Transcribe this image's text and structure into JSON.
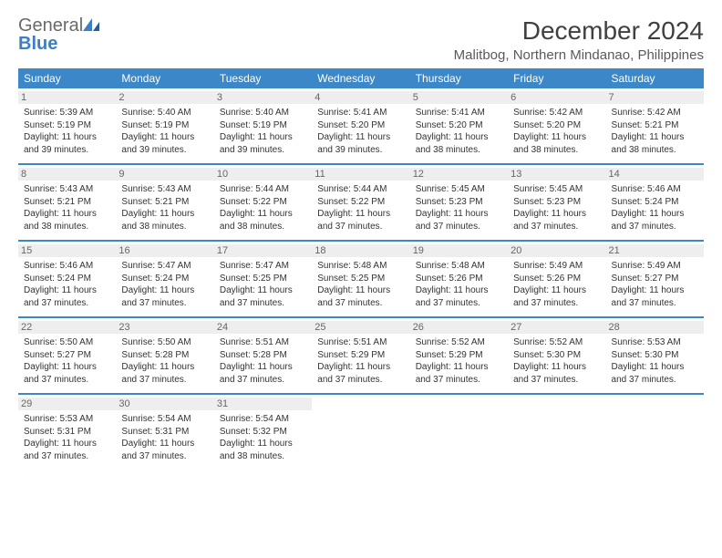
{
  "logo": {
    "text1": "General",
    "text2": "Blue"
  },
  "title": "December 2024",
  "location": "Malitbog, Northern Mindanao, Philippines",
  "colors": {
    "header_bg": "#3b87c8",
    "header_text": "#ffffff",
    "daynum_bg": "#eeeeee",
    "daynum_text": "#666666",
    "body_text": "#333333",
    "border": "#3b87c8"
  },
  "dayHeaders": [
    "Sunday",
    "Monday",
    "Tuesday",
    "Wednesday",
    "Thursday",
    "Friday",
    "Saturday"
  ],
  "weeks": [
    [
      {
        "n": "1",
        "sr": "Sunrise: 5:39 AM",
        "ss": "Sunset: 5:19 PM",
        "d1": "Daylight: 11 hours",
        "d2": "and 39 minutes."
      },
      {
        "n": "2",
        "sr": "Sunrise: 5:40 AM",
        "ss": "Sunset: 5:19 PM",
        "d1": "Daylight: 11 hours",
        "d2": "and 39 minutes."
      },
      {
        "n": "3",
        "sr": "Sunrise: 5:40 AM",
        "ss": "Sunset: 5:19 PM",
        "d1": "Daylight: 11 hours",
        "d2": "and 39 minutes."
      },
      {
        "n": "4",
        "sr": "Sunrise: 5:41 AM",
        "ss": "Sunset: 5:20 PM",
        "d1": "Daylight: 11 hours",
        "d2": "and 39 minutes."
      },
      {
        "n": "5",
        "sr": "Sunrise: 5:41 AM",
        "ss": "Sunset: 5:20 PM",
        "d1": "Daylight: 11 hours",
        "d2": "and 38 minutes."
      },
      {
        "n": "6",
        "sr": "Sunrise: 5:42 AM",
        "ss": "Sunset: 5:20 PM",
        "d1": "Daylight: 11 hours",
        "d2": "and 38 minutes."
      },
      {
        "n": "7",
        "sr": "Sunrise: 5:42 AM",
        "ss": "Sunset: 5:21 PM",
        "d1": "Daylight: 11 hours",
        "d2": "and 38 minutes."
      }
    ],
    [
      {
        "n": "8",
        "sr": "Sunrise: 5:43 AM",
        "ss": "Sunset: 5:21 PM",
        "d1": "Daylight: 11 hours",
        "d2": "and 38 minutes."
      },
      {
        "n": "9",
        "sr": "Sunrise: 5:43 AM",
        "ss": "Sunset: 5:21 PM",
        "d1": "Daylight: 11 hours",
        "d2": "and 38 minutes."
      },
      {
        "n": "10",
        "sr": "Sunrise: 5:44 AM",
        "ss": "Sunset: 5:22 PM",
        "d1": "Daylight: 11 hours",
        "d2": "and 38 minutes."
      },
      {
        "n": "11",
        "sr": "Sunrise: 5:44 AM",
        "ss": "Sunset: 5:22 PM",
        "d1": "Daylight: 11 hours",
        "d2": "and 37 minutes."
      },
      {
        "n": "12",
        "sr": "Sunrise: 5:45 AM",
        "ss": "Sunset: 5:23 PM",
        "d1": "Daylight: 11 hours",
        "d2": "and 37 minutes."
      },
      {
        "n": "13",
        "sr": "Sunrise: 5:45 AM",
        "ss": "Sunset: 5:23 PM",
        "d1": "Daylight: 11 hours",
        "d2": "and 37 minutes."
      },
      {
        "n": "14",
        "sr": "Sunrise: 5:46 AM",
        "ss": "Sunset: 5:24 PM",
        "d1": "Daylight: 11 hours",
        "d2": "and 37 minutes."
      }
    ],
    [
      {
        "n": "15",
        "sr": "Sunrise: 5:46 AM",
        "ss": "Sunset: 5:24 PM",
        "d1": "Daylight: 11 hours",
        "d2": "and 37 minutes."
      },
      {
        "n": "16",
        "sr": "Sunrise: 5:47 AM",
        "ss": "Sunset: 5:24 PM",
        "d1": "Daylight: 11 hours",
        "d2": "and 37 minutes."
      },
      {
        "n": "17",
        "sr": "Sunrise: 5:47 AM",
        "ss": "Sunset: 5:25 PM",
        "d1": "Daylight: 11 hours",
        "d2": "and 37 minutes."
      },
      {
        "n": "18",
        "sr": "Sunrise: 5:48 AM",
        "ss": "Sunset: 5:25 PM",
        "d1": "Daylight: 11 hours",
        "d2": "and 37 minutes."
      },
      {
        "n": "19",
        "sr": "Sunrise: 5:48 AM",
        "ss": "Sunset: 5:26 PM",
        "d1": "Daylight: 11 hours",
        "d2": "and 37 minutes."
      },
      {
        "n": "20",
        "sr": "Sunrise: 5:49 AM",
        "ss": "Sunset: 5:26 PM",
        "d1": "Daylight: 11 hours",
        "d2": "and 37 minutes."
      },
      {
        "n": "21",
        "sr": "Sunrise: 5:49 AM",
        "ss": "Sunset: 5:27 PM",
        "d1": "Daylight: 11 hours",
        "d2": "and 37 minutes."
      }
    ],
    [
      {
        "n": "22",
        "sr": "Sunrise: 5:50 AM",
        "ss": "Sunset: 5:27 PM",
        "d1": "Daylight: 11 hours",
        "d2": "and 37 minutes."
      },
      {
        "n": "23",
        "sr": "Sunrise: 5:50 AM",
        "ss": "Sunset: 5:28 PM",
        "d1": "Daylight: 11 hours",
        "d2": "and 37 minutes."
      },
      {
        "n": "24",
        "sr": "Sunrise: 5:51 AM",
        "ss": "Sunset: 5:28 PM",
        "d1": "Daylight: 11 hours",
        "d2": "and 37 minutes."
      },
      {
        "n": "25",
        "sr": "Sunrise: 5:51 AM",
        "ss": "Sunset: 5:29 PM",
        "d1": "Daylight: 11 hours",
        "d2": "and 37 minutes."
      },
      {
        "n": "26",
        "sr": "Sunrise: 5:52 AM",
        "ss": "Sunset: 5:29 PM",
        "d1": "Daylight: 11 hours",
        "d2": "and 37 minutes."
      },
      {
        "n": "27",
        "sr": "Sunrise: 5:52 AM",
        "ss": "Sunset: 5:30 PM",
        "d1": "Daylight: 11 hours",
        "d2": "and 37 minutes."
      },
      {
        "n": "28",
        "sr": "Sunrise: 5:53 AM",
        "ss": "Sunset: 5:30 PM",
        "d1": "Daylight: 11 hours",
        "d2": "and 37 minutes."
      }
    ],
    [
      {
        "n": "29",
        "sr": "Sunrise: 5:53 AM",
        "ss": "Sunset: 5:31 PM",
        "d1": "Daylight: 11 hours",
        "d2": "and 37 minutes."
      },
      {
        "n": "30",
        "sr": "Sunrise: 5:54 AM",
        "ss": "Sunset: 5:31 PM",
        "d1": "Daylight: 11 hours",
        "d2": "and 37 minutes."
      },
      {
        "n": "31",
        "sr": "Sunrise: 5:54 AM",
        "ss": "Sunset: 5:32 PM",
        "d1": "Daylight: 11 hours",
        "d2": "and 38 minutes."
      },
      null,
      null,
      null,
      null
    ]
  ]
}
